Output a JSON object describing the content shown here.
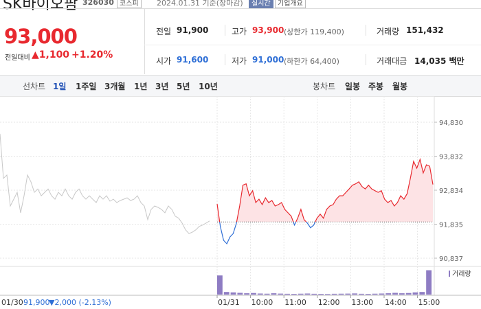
{
  "header": {
    "name": "SK바이오팜",
    "code": "326030",
    "market": "코스피",
    "date": "2024.01.31 기준(장마감)",
    "realtime": "실시간",
    "company": "기업개요"
  },
  "price": {
    "current": "93,000",
    "change_label": "전일대비",
    "change": "▲1,100",
    "rate": "+1.20%"
  },
  "stats": {
    "rows": [
      [
        {
          "label": "전일",
          "value": "91,900"
        },
        {
          "label": "고가",
          "value": "93,900",
          "note": "(상한가 119,400)"
        },
        {
          "label": "거래량",
          "value": "151,432"
        }
      ],
      [
        {
          "label": "시가",
          "value": "91,600"
        },
        {
          "label": "저가",
          "value": "91,000",
          "note": "(하한가 64,400)"
        },
        {
          "label": "거래대금",
          "value": "14,035 백만"
        }
      ]
    ]
  },
  "tabs": {
    "line_label": "선차트",
    "line_periods": [
      "1일",
      "1주일",
      "3개월",
      "1년",
      "3년",
      "5년",
      "10년"
    ],
    "candle_label": "봉차트",
    "candle_periods": [
      "일봉",
      "주봉",
      "월봉"
    ]
  },
  "chart_data": {
    "type": "line",
    "ylim": [
      90655,
      95395
    ],
    "yticks": [
      {
        "value": 94830,
        "label": "94,830"
      },
      {
        "value": 93832,
        "label": "93,832"
      },
      {
        "value": 92834,
        "label": "92,834"
      },
      {
        "value": 91835,
        "label": "91,835"
      },
      {
        "value": 90837,
        "label": "90,837"
      }
    ],
    "grid": true,
    "reference_line": 91900,
    "xticks": [
      "01/31",
      "10:00",
      "11:00",
      "12:00",
      "13:00",
      "14:00",
      "15:00"
    ],
    "previous_day": {
      "date": "01/30",
      "close": "91,900",
      "change": "▼2,000 (-2.13%)",
      "color": "#c8c8c8",
      "values": [
        94490,
        93180,
        93280,
        92370,
        92570,
        92770,
        92170,
        92670,
        93280,
        93080,
        92770,
        92870,
        92670,
        92770,
        92870,
        92670,
        92570,
        92770,
        92670,
        92870,
        92670,
        92570,
        92770,
        92870,
        92670,
        92570,
        92670,
        92570,
        92470,
        92670,
        92570,
        92670,
        92510,
        92570,
        92470,
        92530,
        92570,
        92610,
        92530,
        92570,
        92670,
        92470,
        92370,
        91970,
        92270,
        92370,
        92330,
        92270,
        92170,
        92370,
        92270,
        92070,
        92010,
        91870,
        91670,
        91560,
        91600,
        91670,
        91770,
        91810,
        91870,
        91930
      ]
    },
    "today": {
      "up_color": "#e8292f",
      "down_color": "#2f6fd6",
      "fill": "#fde3e5",
      "values": [
        92430,
        91760,
        91360,
        91260,
        91460,
        91560,
        91870,
        92370,
        92980,
        93020,
        92670,
        92820,
        92470,
        92570,
        92410,
        92610,
        92470,
        92530,
        92370,
        92410,
        92470,
        92270,
        92170,
        92070,
        91810,
        92010,
        92270,
        91970,
        91870,
        91730,
        91810,
        92010,
        92130,
        92010,
        92270,
        92370,
        92410,
        92570,
        92670,
        92670,
        92770,
        92870,
        92980,
        93020,
        93080,
        92940,
        92870,
        92980,
        92870,
        92820,
        92770,
        92820,
        92570,
        92470,
        92530,
        92370,
        92470,
        92670,
        92570,
        92730,
        93180,
        93680,
        93480,
        93740,
        93340,
        93580,
        93540,
        93000
      ]
    },
    "volume": {
      "name": "거래량",
      "color": "#8e7cc3",
      "ylim": [
        0,
        30000
      ],
      "values": [
        22000,
        3000,
        2500,
        2000,
        1500,
        1800,
        1200,
        1000,
        1500,
        1100,
        900,
        800,
        1000,
        1200,
        900,
        800,
        700,
        900,
        1000,
        1100,
        1300,
        900,
        800,
        1000,
        1200,
        1500,
        2000,
        1500,
        1800,
        2500,
        3000,
        28000
      ]
    }
  }
}
